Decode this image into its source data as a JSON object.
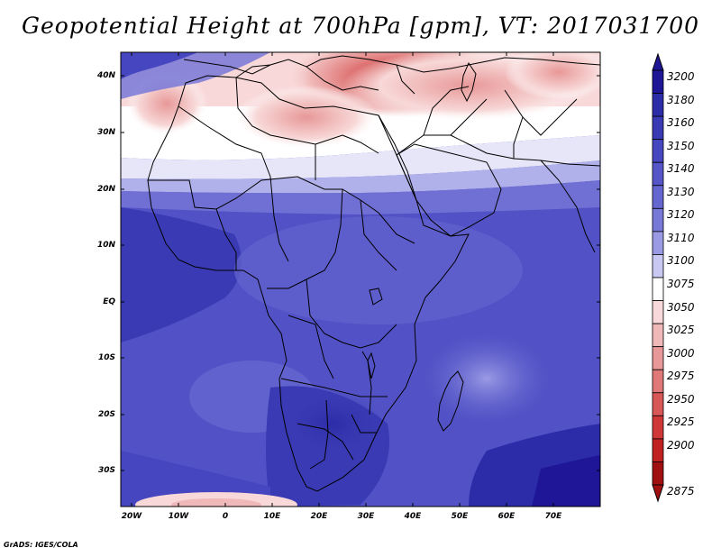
{
  "title": "Geopotential Height at 700hPa [gpm], VT: 2017031700",
  "credit": "GrADS: IGES/COLA",
  "lat_labels": [
    "40N",
    "30N",
    "20N",
    "10N",
    "EQ",
    "10S",
    "20S",
    "30S"
  ],
  "lon_labels": [
    "20W",
    "10W",
    "0",
    "10E",
    "20E",
    "30E",
    "40E",
    "50E",
    "60E",
    "70E"
  ],
  "colorbar": {
    "levels": [
      "3200",
      "3180",
      "3160",
      "3150",
      "3140",
      "3130",
      "3120",
      "3110",
      "3100",
      "3075",
      "3050",
      "3025",
      "3000",
      "2975",
      "2950",
      "2925",
      "2900",
      "2875"
    ],
    "colors": [
      "#1e1696",
      "#2c2ca8",
      "#3a3ab4",
      "#4646c0",
      "#5656c8",
      "#6666d0",
      "#7878d8",
      "#9a9ae4",
      "#c8c8f2",
      "#ffffff",
      "#f8d8d8",
      "#f0b8b8",
      "#e89898",
      "#e07878",
      "#d85858",
      "#d03838",
      "#c02020",
      "#a01010"
    ]
  }
}
